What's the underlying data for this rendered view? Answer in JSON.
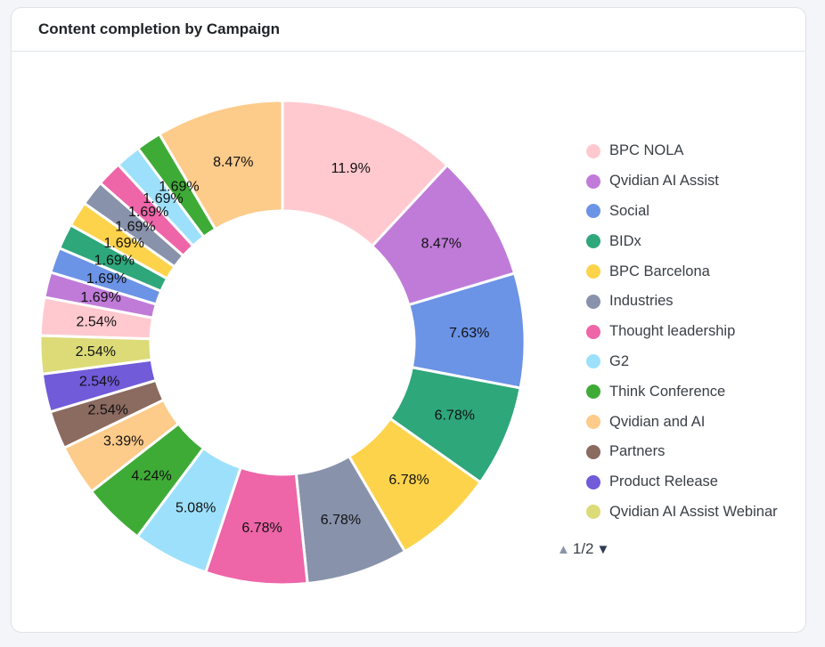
{
  "card": {
    "title": "Content completion by Campaign"
  },
  "chart_data": {
    "type": "donut",
    "title": "Content completion by Campaign",
    "unit": "%",
    "slices": [
      {
        "name": "BPC NOLA",
        "value": 11.9,
        "label": "11.9%",
        "color": "#ffc9cf"
      },
      {
        "name": "Qvidian AI Assist",
        "value": 8.47,
        "label": "8.47%",
        "color": "#c07bd9"
      },
      {
        "name": "Social",
        "value": 7.63,
        "label": "7.63%",
        "color": "#6b93e6"
      },
      {
        "name": "BIDx",
        "value": 6.78,
        "label": "6.78%",
        "color": "#2ea77b"
      },
      {
        "name": "BPC Barcelona",
        "value": 6.78,
        "label": "6.78%",
        "color": "#fdd34c"
      },
      {
        "name": "Industries",
        "value": 6.78,
        "label": "6.78%",
        "color": "#8892ab"
      },
      {
        "name": "Thought leadership",
        "value": 6.78,
        "label": "6.78%",
        "color": "#ee65a8"
      },
      {
        "name": "G2",
        "value": 5.08,
        "label": "5.08%",
        "color": "#9de0fb"
      },
      {
        "name": "Think Conference",
        "value": 4.24,
        "label": "4.24%",
        "color": "#3fab37"
      },
      {
        "name": "Qvidian and AI",
        "value": 3.39,
        "label": "3.39%",
        "color": "#fdcb8a"
      },
      {
        "name": "Partners",
        "value": 2.54,
        "label": "2.54%",
        "color": "#8b6a60"
      },
      {
        "name": "Product Release",
        "value": 2.54,
        "label": "2.54%",
        "color": "#715bd9"
      },
      {
        "name": "Qvidian AI Assist Webinar",
        "value": 2.54,
        "label": "2.54%",
        "color": "#dcdb78"
      },
      {
        "name": "",
        "value": 2.54,
        "label": "2.54%",
        "color": "#ffc9cf"
      },
      {
        "name": "",
        "value": 1.69,
        "label": "1.69%",
        "color": "#c07bd9"
      },
      {
        "name": "",
        "value": 1.69,
        "label": "1.69%",
        "color": "#6b93e6"
      },
      {
        "name": "",
        "value": 1.69,
        "label": "1.69%",
        "color": "#2ea77b"
      },
      {
        "name": "",
        "value": 1.69,
        "label": "1.69%",
        "color": "#fdd34c"
      },
      {
        "name": "",
        "value": 1.69,
        "label": "1.69%",
        "color": "#8892ab"
      },
      {
        "name": "",
        "value": 1.69,
        "label": "1.69%",
        "color": "#ee65a8"
      },
      {
        "name": "",
        "value": 1.69,
        "label": "1.69%",
        "color": "#9de0fb"
      },
      {
        "name": "",
        "value": 1.69,
        "label": "1.69%",
        "color": "#3fab37"
      },
      {
        "name": "",
        "value": 8.47,
        "label": "8.47%",
        "color": "#fdcb8a"
      }
    ],
    "legend": {
      "placement": "right",
      "items": [
        {
          "name": "BPC NOLA",
          "color": "#ffc9cf"
        },
        {
          "name": "Qvidian AI Assist",
          "color": "#c07bd9"
        },
        {
          "name": "Social",
          "color": "#6b93e6"
        },
        {
          "name": "BIDx",
          "color": "#2ea77b"
        },
        {
          "name": "BPC Barcelona",
          "color": "#fdd34c"
        },
        {
          "name": "Industries",
          "color": "#8892ab"
        },
        {
          "name": "Thought leadership",
          "color": "#ee65a8"
        },
        {
          "name": "G2",
          "color": "#9de0fb"
        },
        {
          "name": "Think Conference",
          "color": "#3fab37"
        },
        {
          "name": "Qvidian and AI",
          "color": "#fdcb8a"
        },
        {
          "name": "Partners",
          "color": "#8b6a60"
        },
        {
          "name": "Product Release",
          "color": "#715bd9"
        },
        {
          "name": "Qvidian AI Assist Webinar",
          "color": "#dcdb78"
        }
      ],
      "pager": {
        "text": "1/2",
        "up_icon": "triangle-up-icon",
        "down_icon": "triangle-down-icon"
      }
    }
  }
}
